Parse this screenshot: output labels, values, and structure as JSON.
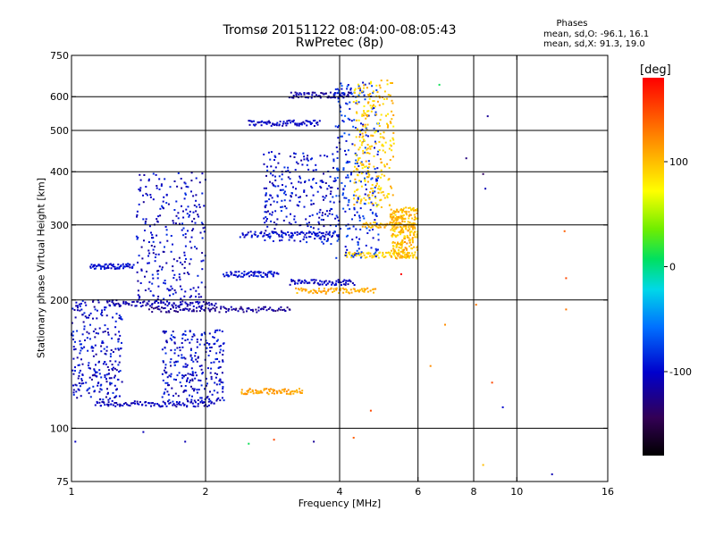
{
  "title": {
    "line1": "Tromsø 20151122 08:04:00-08:05:43",
    "line2": "RwPretec (8p)"
  },
  "phases_box": {
    "heading": "Phases",
    "o_line": "mean, sd,O: -96.1, 16.1",
    "x_line": "mean, sd,X:  91.3, 19.0"
  },
  "colorbar": {
    "unit": "[deg]",
    "min": -180,
    "max": 180,
    "ticks": [
      {
        "value": 100,
        "label": "100"
      },
      {
        "value": 0,
        "label": "0"
      },
      {
        "value": -100,
        "label": "-100"
      }
    ]
  },
  "chart_data": {
    "type": "scatter",
    "title": "Tromsø 20151122 08:04:00-08:05:43",
    "subtitle": "RwPretec (8p)",
    "xlabel": "Frequency [MHz]",
    "ylabel": "Stationary phase Virtual Height [km]",
    "x_scale": "log",
    "y_scale": "log",
    "xlim": [
      1,
      16
    ],
    "ylim": [
      75,
      750
    ],
    "x_ticks": [
      {
        "value": 1,
        "label": "1"
      },
      {
        "value": 2,
        "label": "2"
      },
      {
        "value": 4,
        "label": "4"
      },
      {
        "value": 6,
        "label": "6"
      },
      {
        "value": 8,
        "label": "8"
      },
      {
        "value": 10,
        "label": "10"
      },
      {
        "value": 16,
        "label": "16"
      }
    ],
    "y_ticks": [
      {
        "value": 75,
        "label": "75"
      },
      {
        "value": 100,
        "label": "100"
      },
      {
        "value": 200,
        "label": "200"
      },
      {
        "value": 300,
        "label": "300"
      },
      {
        "value": 400,
        "label": "400"
      },
      {
        "value": 500,
        "label": "500"
      },
      {
        "value": 600,
        "label": "600"
      },
      {
        "value": 750,
        "label": "750"
      }
    ],
    "grid_x": [
      2,
      4,
      6,
      8,
      10
    ],
    "grid_y": [
      100,
      200,
      300,
      400,
      500,
      600
    ],
    "grid": true,
    "color_scale": "rainbow by phase [deg]",
    "traces": [
      {
        "x_range": [
          1.13,
          2.1
        ],
        "height": 114,
        "phase": -108
      },
      {
        "x_range": [
          1.1,
          1.38
        ],
        "height": 240,
        "phase": -98
      },
      {
        "x_range": [
          1.2,
          2.1
        ],
        "height": 196,
        "phase": -112
      },
      {
        "x_range": [
          1.5,
          3.1
        ],
        "height": 190,
        "phase": -120
      },
      {
        "x_range": [
          3.1,
          4.3
        ],
        "height": 220,
        "phase": -105
      },
      {
        "x_range": [
          2.4,
          4.0
        ],
        "height": 285,
        "phase": -100
      },
      {
        "x_range": [
          2.2,
          2.9
        ],
        "height": 230,
        "phase": -96
      },
      {
        "x_range": [
          2.4,
          3.3
        ],
        "height": 122,
        "phase": 112
      },
      {
        "x_range": [
          2.5,
          3.6
        ],
        "height": 520,
        "phase": -104
      },
      {
        "x_range": [
          3.1,
          4.3
        ],
        "height": 605,
        "phase": -115
      },
      {
        "x_range": [
          3.2,
          4.8
        ],
        "height": 210,
        "phase": 108
      },
      {
        "x_range": [
          4.1,
          5.9
        ],
        "height": 255,
        "phase": 90
      },
      {
        "x_range": [
          4.5,
          5.9
        ],
        "height": 300,
        "phase": 105
      }
    ],
    "blobs": [
      {
        "x_range": [
          1.0,
          1.3
        ],
        "h_range": [
          115,
          200
        ],
        "phase": -103
      },
      {
        "x_range": [
          1.4,
          2.0
        ],
        "h_range": [
          200,
          400
        ],
        "phase": -102
      },
      {
        "x_range": [
          2.7,
          3.9
        ],
        "h_range": [
          270,
          450
        ],
        "phase": -100
      },
      {
        "x_range": [
          3.9,
          4.9
        ],
        "h_range": [
          250,
          650
        ],
        "phase": -85
      },
      {
        "x_range": [
          4.3,
          5.3
        ],
        "h_range": [
          330,
          660
        ],
        "phase": 95
      },
      {
        "x_range": [
          5.2,
          6.0
        ],
        "h_range": [
          250,
          330
        ],
        "phase": 100
      },
      {
        "x_range": [
          1.6,
          2.2
        ],
        "h_range": [
          115,
          170
        ],
        "phase": -100
      }
    ],
    "sparse_points": [
      {
        "x": 1.02,
        "height": 93,
        "phase": -105
      },
      {
        "x": 1.45,
        "height": 98,
        "phase": -108
      },
      {
        "x": 1.8,
        "height": 93,
        "phase": -110
      },
      {
        "x": 2.5,
        "height": 92,
        "phase": 10
      },
      {
        "x": 2.85,
        "height": 94,
        "phase": 150
      },
      {
        "x": 3.5,
        "height": 93,
        "phase": -120
      },
      {
        "x": 4.3,
        "height": 95,
        "phase": 140
      },
      {
        "x": 6.7,
        "height": 640,
        "phase": 10
      },
      {
        "x": 7.7,
        "height": 430,
        "phase": -130
      },
      {
        "x": 8.4,
        "height": 395,
        "phase": -140
      },
      {
        "x": 8.5,
        "height": 365,
        "phase": -110
      },
      {
        "x": 8.6,
        "height": 540,
        "phase": -120
      },
      {
        "x": 6.4,
        "height": 140,
        "phase": 120
      },
      {
        "x": 6.9,
        "height": 175,
        "phase": 120
      },
      {
        "x": 8.1,
        "height": 195,
        "phase": 130
      },
      {
        "x": 8.8,
        "height": 128,
        "phase": 150
      },
      {
        "x": 9.3,
        "height": 112,
        "phase": -100
      },
      {
        "x": 12.9,
        "height": 225,
        "phase": 150
      },
      {
        "x": 12.9,
        "height": 190,
        "phase": 130
      },
      {
        "x": 12.8,
        "height": 290,
        "phase": 140
      },
      {
        "x": 12.0,
        "height": 78,
        "phase": -110
      },
      {
        "x": 8.4,
        "height": 82,
        "phase": 100
      },
      {
        "x": 5.5,
        "height": 230,
        "phase": 180
      },
      {
        "x": 4.7,
        "height": 110,
        "phase": 150
      }
    ]
  }
}
